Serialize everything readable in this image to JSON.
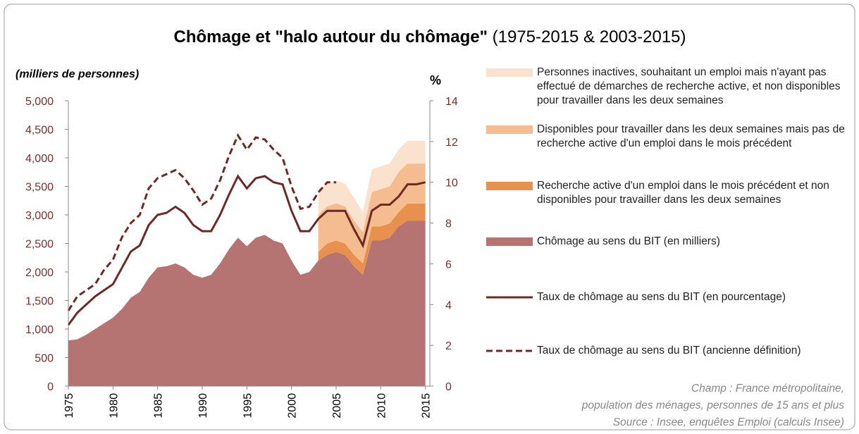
{
  "chart_data": {
    "type": "area-line",
    "title": "Chômage et \"halo autour du chômage\"",
    "subtitle": "(1975-2015 & 2003-2015)",
    "ylabel": "(milliers de personnes)",
    "y2label": "%",
    "xlim": [
      1975,
      2015.5
    ],
    "xticks": [
      1975,
      1980,
      1985,
      1990,
      1995,
      2000,
      2005,
      2010,
      2015
    ],
    "ylim": [
      0,
      5000
    ],
    "yticks": [
      {
        "value": 0,
        "label": "0"
      },
      {
        "value": 500,
        "label": "500"
      },
      {
        "value": 1000,
        "label": "1,000"
      },
      {
        "value": 1500,
        "label": "1,500"
      },
      {
        "value": 2000,
        "label": "2,000"
      },
      {
        "value": 2500,
        "label": "2,500"
      },
      {
        "value": 3000,
        "label": "3,000"
      },
      {
        "value": 3500,
        "label": "3,500"
      },
      {
        "value": 4000,
        "label": "4,000"
      },
      {
        "value": 4500,
        "label": "4,500"
      },
      {
        "value": 5000,
        "label": "5,000"
      }
    ],
    "y2lim": [
      0,
      14
    ],
    "y2ticks": [
      0,
      2,
      4,
      6,
      8,
      10,
      12,
      14
    ],
    "series": [
      {
        "name": "Chômage au sens du BIT (en milliers)",
        "kind": "area",
        "color": "#b57472",
        "x": [
          1975,
          1976,
          1977,
          1978,
          1979,
          1980,
          1981,
          1982,
          1983,
          1984,
          1985,
          1986,
          1987,
          1988,
          1989,
          1990,
          1991,
          1992,
          1993,
          1994,
          1995,
          1996,
          1997,
          1998,
          1999,
          2000,
          2001,
          2002,
          2003,
          2004,
          2005,
          2006,
          2007,
          2008,
          2009,
          2010,
          2011,
          2012,
          2013,
          2014,
          2015
        ],
        "values": [
          800,
          820,
          900,
          1000,
          1100,
          1200,
          1350,
          1550,
          1650,
          1900,
          2080,
          2100,
          2150,
          2080,
          1950,
          1900,
          1950,
          2150,
          2400,
          2600,
          2450,
          2600,
          2650,
          2550,
          2500,
          2200,
          1950,
          2000,
          2200,
          2300,
          2350,
          2300,
          2100,
          1950,
          2550,
          2550,
          2600,
          2800,
          2900,
          2900,
          2900
        ]
      },
      {
        "name": "Recherche active d'un emploi dans le mois précédent et non disponibles pour travailler dans les deux semaines",
        "kind": "stack",
        "color": "#e8914f",
        "x": [
          2003,
          2004,
          2005,
          2006,
          2007,
          2008,
          2009,
          2010,
          2011,
          2012,
          2013,
          2014,
          2015
        ],
        "values": [
          150,
          200,
          200,
          200,
          200,
          200,
          250,
          250,
          250,
          250,
          300,
          300,
          300
        ]
      },
      {
        "name": "Disponibles pour travailler dans les deux semaines mais pas de recherche active d'un emploi dans le mois précédent",
        "kind": "stack",
        "color": "#f5bd8f",
        "x": [
          2003,
          2004,
          2005,
          2006,
          2007,
          2008,
          2009,
          2010,
          2011,
          2012,
          2013,
          2014,
          2015
        ],
        "values": [
          650,
          650,
          650,
          650,
          600,
          550,
          600,
          650,
          650,
          700,
          700,
          700,
          700
        ]
      },
      {
        "name": "Personnes inactives, souhaitant un emploi mais n'ayant pas effectué de démarches de recherche active, et non disponibles pour travailler dans les deux semaines",
        "kind": "stack",
        "color": "#fbe2cf",
        "x": [
          2003,
          2004,
          2005,
          2006,
          2007,
          2008,
          2009,
          2010,
          2011,
          2012,
          2013,
          2014,
          2015
        ],
        "values": [
          450,
          400,
          400,
          400,
          400,
          350,
          400,
          400,
          400,
          400,
          400,
          400,
          400
        ]
      },
      {
        "name": "Taux de chômage au sens du BIT (en pourcentage)",
        "kind": "line",
        "axis": "y2",
        "color": "#6b2a26",
        "x": [
          1975,
          1976,
          1977,
          1978,
          1979,
          1980,
          1981,
          1982,
          1983,
          1984,
          1985,
          1986,
          1987,
          1988,
          1989,
          1990,
          1991,
          1992,
          1993,
          1994,
          1995,
          1996,
          1997,
          1998,
          1999,
          2000,
          2001,
          2002,
          2003,
          2004,
          2005,
          2006,
          2007,
          2008,
          2009,
          2010,
          2011,
          2012,
          2013,
          2014,
          2015
        ],
        "values": [
          3.0,
          3.6,
          4.0,
          4.4,
          4.7,
          5.0,
          5.8,
          6.6,
          6.9,
          7.9,
          8.4,
          8.5,
          8.8,
          8.5,
          7.9,
          7.6,
          7.6,
          8.4,
          9.4,
          10.3,
          9.7,
          10.2,
          10.3,
          10.0,
          9.9,
          8.6,
          7.6,
          7.6,
          8.2,
          8.6,
          8.6,
          8.6,
          7.7,
          6.9,
          8.6,
          8.9,
          8.9,
          9.3,
          9.9,
          9.9,
          10.0
        ]
      },
      {
        "name": "Taux de chômage au sens du BIT (ancienne définition)",
        "kind": "dashed",
        "axis": "y2",
        "color": "#6b2a26",
        "x": [
          1975,
          1976,
          1977,
          1978,
          1979,
          1980,
          1981,
          1982,
          1983,
          1984,
          1985,
          1986,
          1987,
          1988,
          1989,
          1990,
          1991,
          1992,
          1993,
          1994,
          1995,
          1996,
          1997,
          1998,
          1999,
          2000,
          2001,
          2002,
          2003,
          2004,
          2005
        ],
        "values": [
          3.7,
          4.4,
          4.7,
          5.0,
          5.7,
          6.2,
          7.3,
          8.0,
          8.4,
          9.7,
          10.2,
          10.4,
          10.6,
          10.2,
          9.6,
          8.9,
          9.2,
          10.1,
          11.3,
          12.3,
          11.6,
          12.2,
          12.1,
          11.6,
          11.2,
          9.8,
          8.7,
          8.8,
          9.5,
          10.0,
          10.0
        ]
      }
    ],
    "notes": [
      "Champ : France métropolitaine,",
      "population des ménages, personnes de 15 ans et plus",
      "Source : Insee, enquêtes Emploi (calculs Insee)"
    ]
  }
}
